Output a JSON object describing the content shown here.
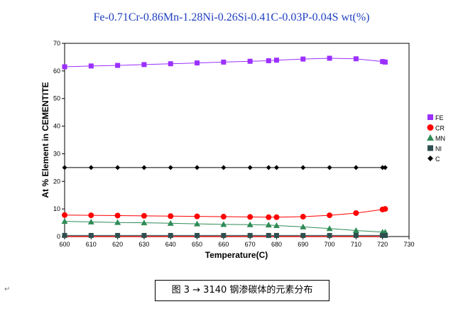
{
  "chart_data": {
    "type": "line",
    "title": "Fe-0.71Cr-0.86Mn-1.28Ni-0.26Si-0.41C-0.03P-0.04S wt(%)",
    "xlabel": "Temperature(C)",
    "ylabel": "At %  Element in CEMENTITE",
    "xlim": [
      600,
      730
    ],
    "ylim": [
      0,
      70
    ],
    "xticks": [
      600,
      610,
      620,
      630,
      640,
      650,
      660,
      670,
      680,
      690,
      700,
      710,
      720,
      730
    ],
    "yticks": [
      0,
      10,
      20,
      30,
      40,
      50,
      60,
      70
    ],
    "grid": false,
    "legend": "right",
    "x": [
      600,
      610,
      620,
      630,
      640,
      650,
      660,
      670,
      677,
      680,
      690,
      700,
      710,
      720,
      721
    ],
    "series": [
      {
        "name": "FE",
        "color": "#9b30ff",
        "marker": "square",
        "values": [
          61.5,
          61.8,
          62.0,
          62.3,
          62.6,
          62.9,
          63.2,
          63.5,
          63.7,
          63.9,
          64.3,
          64.6,
          64.4,
          63.4,
          63.2
        ]
      },
      {
        "name": "CR",
        "color": "#ff0000",
        "marker": "circle",
        "values": [
          7.8,
          7.7,
          7.6,
          7.5,
          7.4,
          7.3,
          7.2,
          7.1,
          7.0,
          7.0,
          7.2,
          7.7,
          8.5,
          9.8,
          10.0
        ]
      },
      {
        "name": "MN",
        "color": "#2e8b57",
        "marker": "triangle",
        "values": [
          5.5,
          5.3,
          5.1,
          5.0,
          4.8,
          4.6,
          4.4,
          4.3,
          4.2,
          4.0,
          3.5,
          2.9,
          2.2,
          1.6,
          1.6
        ]
      },
      {
        "name": "NI",
        "color": "#2f4f4f",
        "marker": "square",
        "values": [
          0.4,
          0.4,
          0.4,
          0.4,
          0.4,
          0.4,
          0.4,
          0.4,
          0.4,
          0.4,
          0.4,
          0.4,
          0.4,
          0.4,
          0.4
        ]
      },
      {
        "name": "C",
        "color": "#000000",
        "marker": "diamond",
        "values": [
          25.0,
          25.0,
          25.0,
          25.0,
          25.0,
          25.0,
          25.0,
          25.0,
          25.0,
          25.0,
          25.0,
          25.0,
          25.0,
          25.0,
          25.0
        ]
      }
    ],
    "baseline_color": "#cc0000"
  },
  "caption": "图 3 → 3140 钢渗碳体的元素分布",
  "paragraph_mark": "↵"
}
